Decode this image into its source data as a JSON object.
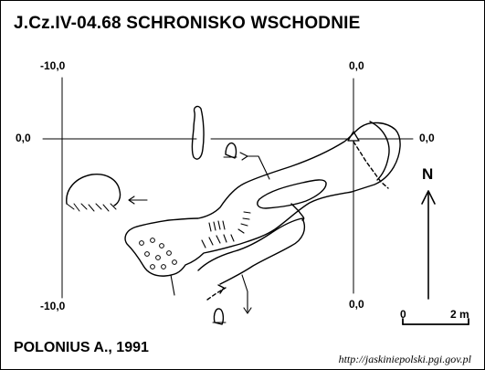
{
  "title": "J.Cz.IV-04.68  SCHRONISKO WSCHODNIE",
  "coordinates": {
    "left_top": "-10,0",
    "left_bottom": "-10,0",
    "left_axis": "0,0",
    "right_top": "0,0",
    "right_axis": "0,0",
    "right_bottom": "0,0"
  },
  "north_label": "N",
  "scale": {
    "start_label": "0",
    "end_label": "2 m"
  },
  "author": "POLONIUS A., 1991",
  "source_url": "http://jaskiniepolski.pgi.gov.pl",
  "colors": {
    "ink": "#000000",
    "paper": "#ffffff"
  }
}
